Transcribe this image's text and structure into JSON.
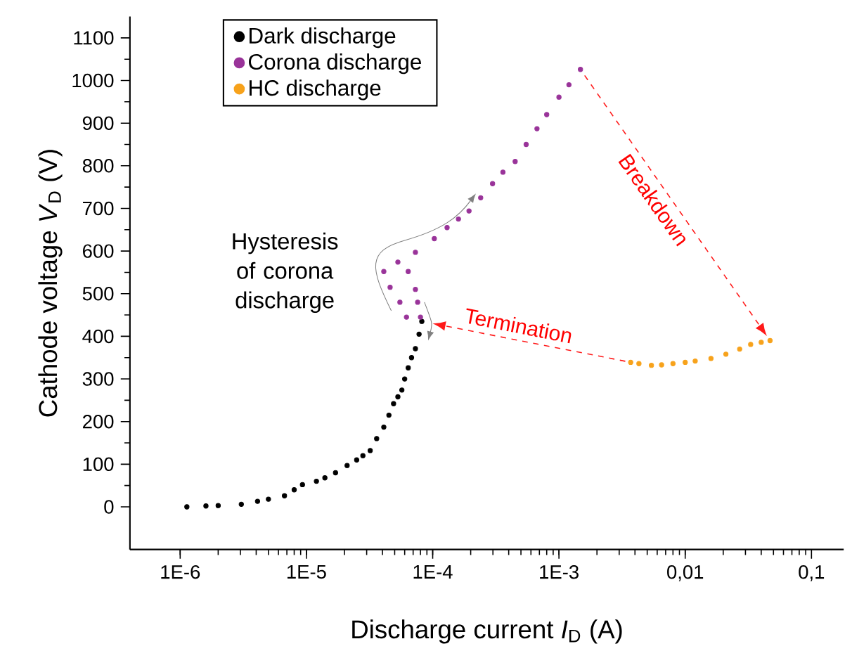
{
  "chart_data": {
    "type": "scatter",
    "xlabel": "Discharge current *I*$_{D}$ (A)",
    "ylabel": "Cathode voltage  *V*$_{D}$ (V)",
    "log": "x",
    "xlim": [
      4e-07,
      0.18
    ],
    "ylim": [
      -100,
      1150
    ],
    "xticks": [
      {
        "value": 1e-06,
        "label": "1E-6"
      },
      {
        "value": 1e-05,
        "label": "1E-5"
      },
      {
        "value": 0.0001,
        "label": "1E-4"
      },
      {
        "value": 0.001,
        "label": "1E-3"
      },
      {
        "value": 0.01,
        "label": "0,01"
      },
      {
        "value": 0.1,
        "label": "0,1"
      }
    ],
    "yticks": [
      0,
      100,
      200,
      300,
      400,
      500,
      600,
      700,
      800,
      900,
      1000,
      1100
    ],
    "legend": "top left",
    "grid": false,
    "series": [
      {
        "name": "Dark discharge",
        "color": "#000000",
        "x": [
          1.13e-06,
          1.6e-06,
          2e-06,
          3.05e-06,
          4.1e-06,
          5e-06,
          6.7e-06,
          8e-06,
          9.3e-06,
          1.2e-05,
          1.4e-05,
          1.7e-05,
          2.1e-05,
          2.5e-05,
          2.8e-05,
          3.2e-05,
          3.6e-05,
          4.1e-05,
          4.5e-05,
          4.9e-05,
          5.3e-05,
          5.7e-05,
          6e-05,
          6.4e-05,
          6.8e-05,
          7.3e-05,
          7.8e-05,
          8.2e-05
        ],
        "values": [
          0,
          2,
          3,
          6,
          13,
          18,
          26,
          40,
          52,
          60,
          68,
          80,
          97,
          110,
          120,
          132,
          160,
          187,
          215,
          242,
          258,
          274,
          300,
          326,
          350,
          371,
          405,
          435
        ]
      },
      {
        "name": "Corona discharge",
        "color": "#993399",
        "x": [
          6.2e-05,
          5.5e-05,
          4.6e-05,
          4.1e-05,
          5.3e-05,
          8e-05,
          7.6e-05,
          7.3e-05,
          6.4e-05,
          7.3e-05,
          0.000103,
          0.00013,
          0.00016,
          0.000194,
          0.00024,
          0.000298,
          0.00036,
          0.00045,
          0.00055,
          0.00067,
          0.0008,
          0.001,
          0.0012,
          0.00148
        ],
        "values": [
          445,
          480,
          515,
          552,
          574,
          445,
          480,
          510,
          552,
          597,
          629,
          655,
          675,
          694,
          725,
          758,
          785,
          810,
          850,
          887,
          920,
          961,
          990,
          1026
        ]
      },
      {
        "name": "HC discharge",
        "color": "#f7a21b",
        "x": [
          0.0037,
          0.0043,
          0.0054,
          0.0065,
          0.008,
          0.01,
          0.012,
          0.016,
          0.021,
          0.027,
          0.033,
          0.04,
          0.047
        ],
        "values": [
          339,
          336,
          332,
          333,
          336,
          339,
          342,
          348,
          358,
          370,
          381,
          386,
          390
        ]
      }
    ],
    "annotations": [
      "Breakdown",
      "Termination",
      {
        "text": "Hysteresis of corona discharge",
        "x": 5.5e-05,
        "y": 480
      }
    ]
  }
}
